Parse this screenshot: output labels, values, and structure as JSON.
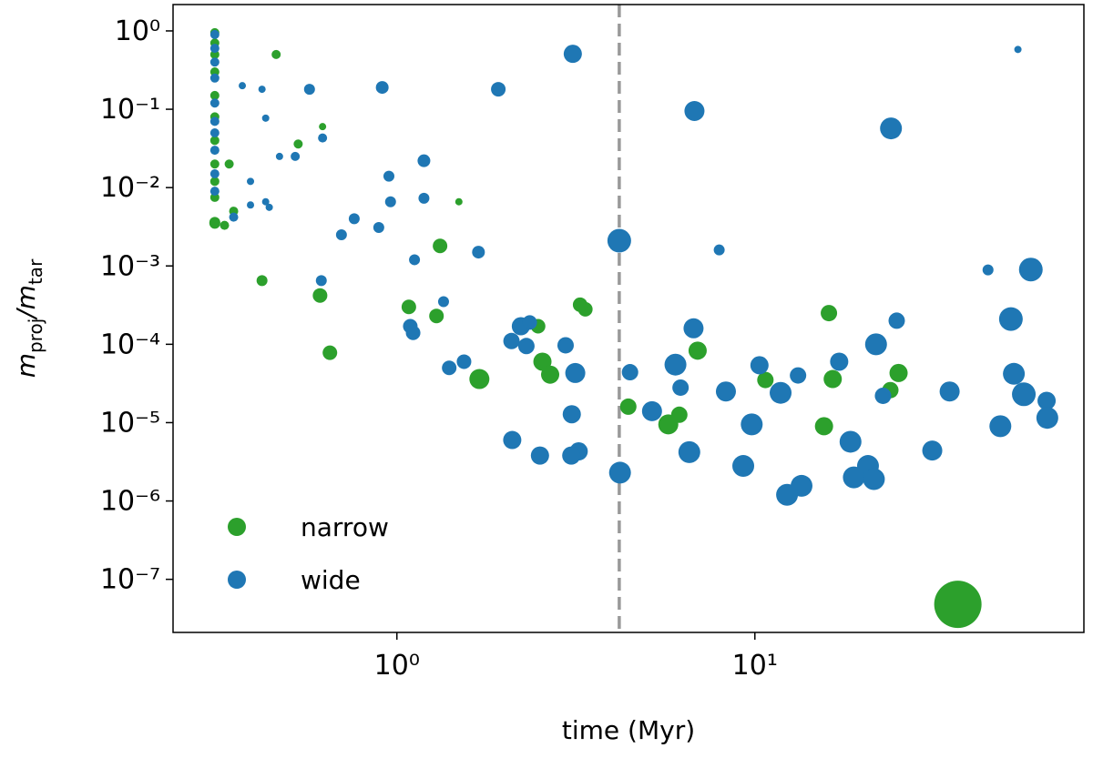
{
  "chart_data": {
    "type": "scatter",
    "xlabel": "time (Myr)",
    "ylabel": [
      "m",
      "proj",
      "/m",
      "tar"
    ],
    "xscale": "log",
    "yscale": "log",
    "xlim": [
      0.237,
      83
    ],
    "ylim": [
      2.1e-08,
      2.17
    ],
    "xticks": [
      {
        "value": 1,
        "label": "10⁰"
      },
      {
        "value": 10,
        "label": "10¹"
      }
    ],
    "yticks": [
      {
        "value": 1,
        "label": "10⁰"
      },
      {
        "value": 0.1,
        "label": "10⁻¹"
      },
      {
        "value": 0.01,
        "label": "10⁻²"
      },
      {
        "value": 0.001,
        "label": "10⁻³"
      },
      {
        "value": 0.0001,
        "label": "10⁻⁴"
      },
      {
        "value": 1e-05,
        "label": "10⁻⁵"
      },
      {
        "value": 1e-06,
        "label": "10⁻⁶"
      },
      {
        "value": 1e-07,
        "label": "10⁻⁷"
      }
    ],
    "vline": 4.18,
    "vline_color": "#999999",
    "legend": "lower left",
    "series": [
      {
        "name": "narrow",
        "color": "#2ca02c",
        "x": [
          0.31,
          0.31,
          0.31,
          0.31,
          0.31,
          0.31,
          0.31,
          0.31,
          0.31,
          0.31,
          0.31,
          0.31,
          0.33,
          0.35,
          0.34,
          0.46,
          0.62,
          0.53,
          1.49,
          1.32,
          0.42,
          0.61,
          1.08,
          1.29,
          0.65,
          3.36,
          3.25,
          2.48,
          1.7,
          2.55,
          2.68,
          4.43,
          5.73,
          6.15,
          6.92,
          10.7,
          16.1,
          16.5,
          15.6,
          23.9,
          25.2,
          36.9
        ],
        "values": [
          0.95,
          0.7,
          0.5,
          0.3,
          0.15,
          0.08,
          0.04,
          0.02,
          0.012,
          0.0075,
          0.0036,
          0.0035,
          0.0033,
          0.005,
          0.02,
          0.5,
          0.06,
          0.036,
          0.0066,
          0.0018,
          0.00065,
          0.00042,
          0.0003,
          0.00023,
          7.8e-05,
          0.00028,
          0.00032,
          0.00017,
          3.6e-05,
          6e-05,
          4.1e-05,
          1.6e-05,
          9.5e-06,
          1.26e-05,
          8.3e-05,
          3.5e-05,
          0.00025,
          3.6e-05,
          9e-06,
          2.6e-05,
          4.3e-05,
          4.8e-08
        ],
        "sizes": [
          5,
          5,
          5,
          5,
          5,
          5,
          5,
          5,
          5,
          5,
          6,
          6,
          5,
          5,
          5,
          5,
          4,
          5,
          4,
          8,
          6,
          8,
          8,
          8,
          8,
          8,
          8,
          8,
          11,
          10,
          10,
          9,
          11,
          9,
          10,
          9,
          9,
          10,
          10,
          9,
          10,
          26
        ]
      },
      {
        "name": "wide",
        "color": "#1f77b4",
        "x": [
          0.31,
          0.31,
          0.31,
          0.31,
          0.31,
          0.31,
          0.31,
          0.31,
          0.31,
          0.31,
          0.37,
          0.42,
          0.43,
          0.47,
          0.52,
          0.62,
          0.57,
          0.91,
          0.95,
          1.19,
          1.19,
          0.96,
          0.76,
          0.89,
          0.7,
          0.43,
          0.44,
          0.39,
          0.35,
          0.39,
          1.92,
          3.1,
          54.3,
          6.78,
          24.0,
          4.18,
          7.95,
          1.69,
          1.12,
          44.8,
          59.0,
          0.615,
          1.35,
          51.9,
          24.9,
          6.74,
          2.22,
          2.35,
          1.09,
          1.11,
          2.09,
          2.3,
          2.96,
          21.8,
          17.2,
          1.54,
          1.4,
          6.0,
          10.3,
          3.15,
          4.48,
          13.2,
          52.9,
          6.2,
          8.3,
          11.8,
          35,
          22.8,
          56.4,
          65.3,
          5.16,
          3.08,
          65.6,
          9.8,
          48.5,
          18.5,
          2.1,
          31.3,
          3.22,
          3.07,
          2.51,
          6.56,
          9.28,
          20.7,
          4.2,
          18.9,
          21.5,
          13.5,
          12.3
        ],
        "values": [
          0.9,
          0.6,
          0.4,
          0.25,
          0.12,
          0.07,
          0.05,
          0.03,
          0.015,
          0.009,
          0.2,
          0.18,
          0.077,
          0.025,
          0.025,
          0.043,
          0.18,
          0.19,
          0.014,
          0.022,
          0.0073,
          0.0066,
          0.004,
          0.0031,
          0.0025,
          0.0066,
          0.0056,
          0.006,
          0.0042,
          0.012,
          0.18,
          0.51,
          0.58,
          0.095,
          0.057,
          0.0021,
          0.0016,
          0.0015,
          0.0012,
          0.00089,
          0.0009,
          0.00065,
          0.00035,
          0.00021,
          0.0002,
          0.00016,
          0.00017,
          0.00019,
          0.00017,
          0.00014,
          0.00011,
          9.5e-05,
          9.7e-05,
          0.0001,
          6e-05,
          6e-05,
          5e-05,
          5.5e-05,
          5.4e-05,
          4.3e-05,
          4.4e-05,
          4e-05,
          4.2e-05,
          2.8e-05,
          2.5e-05,
          2.4e-05,
          2.5e-05,
          2.2e-05,
          2.3e-05,
          1.9e-05,
          1.4e-05,
          1.28e-05,
          1.15e-05,
          9.5e-06,
          9e-06,
          5.7e-06,
          6e-06,
          4.4e-06,
          4.3e-06,
          3.8e-06,
          3.8e-06,
          4.2e-06,
          2.8e-06,
          2.8e-06,
          2.3e-06,
          2e-06,
          1.9e-06,
          1.56e-06,
          1.2e-06
        ],
        "sizes": [
          5,
          5,
          5,
          5,
          5,
          5,
          5,
          5,
          5,
          5,
          4,
          4,
          4,
          4,
          5,
          5,
          6,
          7,
          6,
          7,
          6,
          6,
          6,
          6,
          6,
          4,
          4,
          4,
          5,
          4,
          8,
          10,
          4,
          11,
          12,
          13,
          6,
          7,
          6,
          6,
          13,
          6,
          6,
          13,
          9,
          11,
          10,
          8,
          8,
          8,
          9,
          9,
          9,
          12,
          10,
          8,
          8,
          12,
          10,
          11,
          9,
          9,
          12,
          9,
          11,
          12,
          11,
          9,
          13,
          10,
          11,
          10,
          12,
          12,
          12,
          12,
          10,
          11,
          10,
          10,
          10,
          12,
          12,
          12,
          12,
          12,
          12,
          12,
          12
        ]
      }
    ]
  }
}
